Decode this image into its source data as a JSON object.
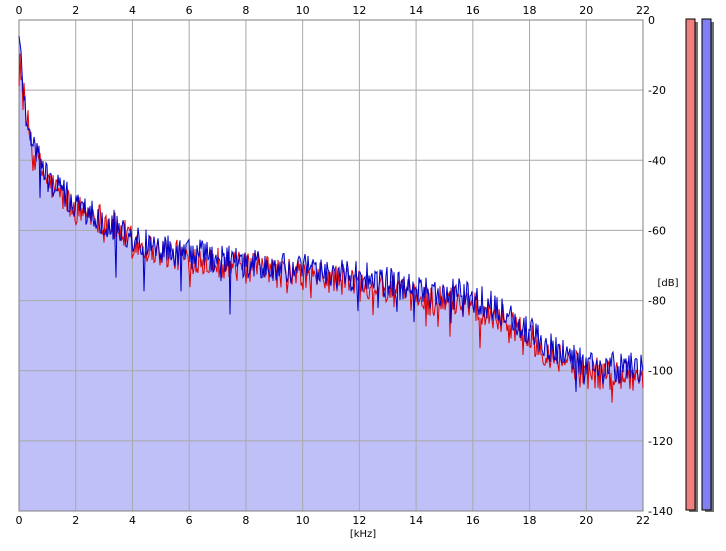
{
  "chart_data": {
    "type": "line",
    "xlabel": "[kHz]",
    "ylabel": "[dB]",
    "xlim": [
      0,
      22
    ],
    "ylim": [
      -140,
      0
    ],
    "x_ticks": [
      "0",
      "2",
      "4",
      "6",
      "8",
      "10",
      "12",
      "14",
      "16",
      "18",
      "20",
      "22"
    ],
    "y_ticks": [
      "0",
      "-20",
      "-40",
      "-60",
      "-80",
      "-100",
      "-120",
      "-140"
    ],
    "grid": true,
    "colors": {
      "fill": "#c0c0f8",
      "series_left": "#e00000",
      "series_right": "#0000c8",
      "meter_left": "#f08080",
      "meter_right": "#8080f0",
      "grid": "#a8a8a8"
    },
    "series": [
      {
        "x": [
          0,
          0.25,
          0.5,
          0.75,
          1,
          1.5,
          2,
          2.5,
          3,
          3.5,
          4,
          4.5,
          5,
          5.5,
          6,
          6.5,
          7,
          7.5,
          8,
          8.5,
          9,
          9.5,
          10,
          10.5,
          11,
          11.5,
          12,
          12.5,
          13,
          13.5,
          14,
          14.5,
          15,
          15.5,
          16,
          16.5,
          17,
          17.5,
          18,
          18.5,
          19,
          19.5,
          20,
          20.5,
          21,
          21.5,
          22
        ],
        "values": [
          -8,
          -28,
          -36,
          -42,
          -46,
          -50,
          -54,
          -55,
          -57,
          -60,
          -63,
          -65,
          -66,
          -67,
          -68,
          -68,
          -69,
          -70,
          -71,
          -71,
          -72,
          -72,
          -73,
          -73,
          -74,
          -74,
          -75,
          -75,
          -77,
          -78,
          -79,
          -80,
          -80,
          -80,
          -81,
          -83,
          -85,
          -87,
          -91,
          -94,
          -96,
          -98,
          -100,
          -101,
          -101,
          -101,
          -102
        ]
      },
      {
        "x": [
          0,
          0.25,
          0.5,
          0.75,
          1,
          1.5,
          2,
          2.5,
          3,
          3.5,
          4,
          4.5,
          5,
          5.5,
          6,
          6.5,
          7,
          7.5,
          8,
          8.5,
          9,
          9.5,
          10,
          10.5,
          11,
          11.5,
          12,
          12.5,
          13,
          13.5,
          14,
          14.5,
          15,
          15.5,
          16,
          16.5,
          17,
          17.5,
          18,
          18.5,
          19,
          19.5,
          20,
          20.5,
          21,
          21.5,
          22
        ],
        "values": [
          -5,
          -27,
          -35,
          -41,
          -45,
          -49,
          -53,
          -55,
          -57,
          -59,
          -62,
          -64,
          -65,
          -66,
          -67,
          -67,
          -68,
          -69,
          -70,
          -70,
          -71,
          -71,
          -71,
          -72,
          -72,
          -73,
          -73,
          -74,
          -75,
          -76,
          -77,
          -78,
          -78,
          -78,
          -79,
          -81,
          -83,
          -86,
          -89,
          -92,
          -94,
          -96,
          -98,
          -99,
          -99,
          -99,
          -100
        ]
      }
    ]
  }
}
